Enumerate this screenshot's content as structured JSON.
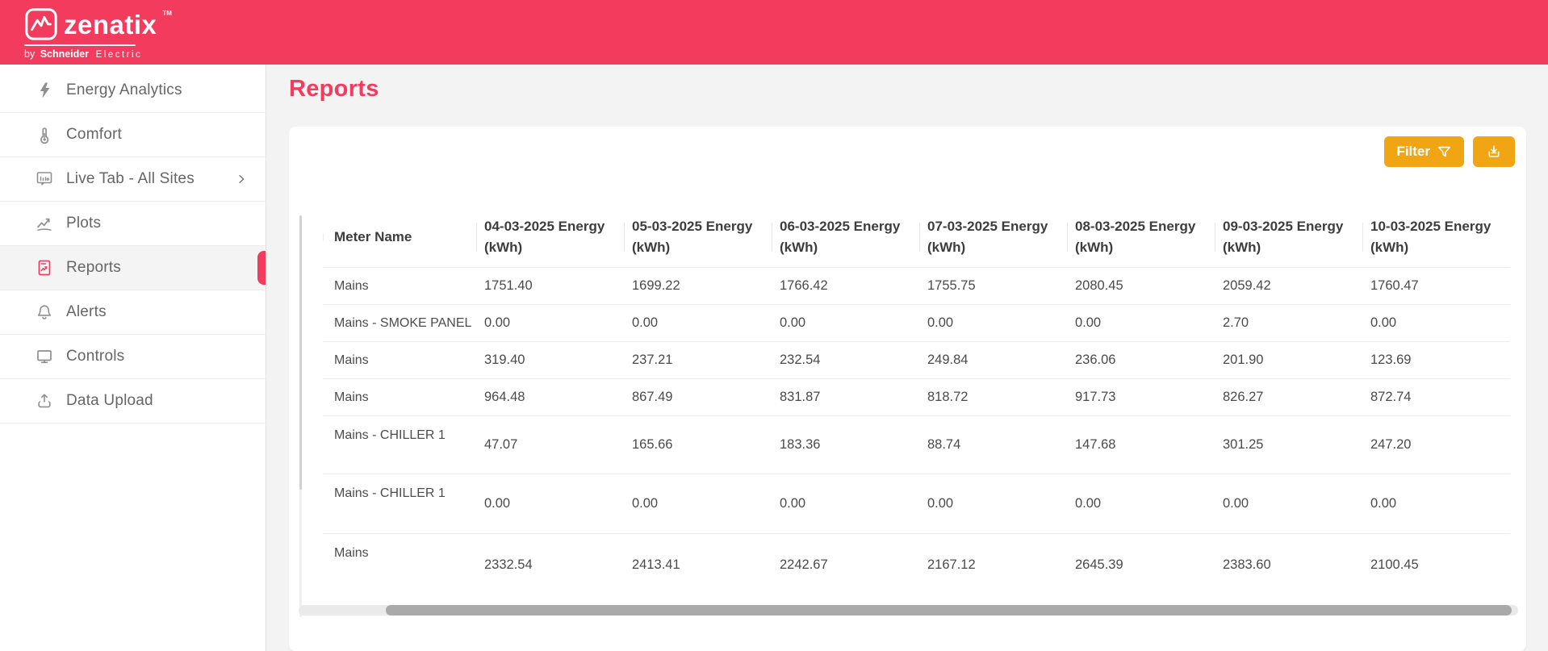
{
  "header": {
    "logo": {
      "text": "zenatix",
      "tm": "TM",
      "by": "by",
      "brand": "Schneider",
      "sub": "Electric"
    }
  },
  "sidebar": {
    "items": [
      {
        "label": "Energy Analytics",
        "icon": "bolt-icon",
        "active": false,
        "chevron": false
      },
      {
        "label": "Comfort",
        "icon": "thermometer-icon",
        "active": false,
        "chevron": false
      },
      {
        "label": "Live Tab - All Sites",
        "icon": "live-monitor-icon",
        "active": false,
        "chevron": true
      },
      {
        "label": "Plots",
        "icon": "line-chart-icon",
        "active": false,
        "chevron": false
      },
      {
        "label": "Reports",
        "icon": "report-document-icon",
        "active": true,
        "chevron": false
      },
      {
        "label": "Alerts",
        "icon": "bell-icon",
        "active": false,
        "chevron": false
      },
      {
        "label": "Controls",
        "icon": "monitor-icon",
        "active": false,
        "chevron": false
      },
      {
        "label": "Data Upload",
        "icon": "upload-icon",
        "active": false,
        "chevron": false
      }
    ]
  },
  "page": {
    "title": "Reports"
  },
  "toolbar": {
    "filter_label": "Filter",
    "filter_icon": "funnel-icon",
    "download_icon": "download-icon"
  },
  "table": {
    "columns": [
      "Meter Name",
      "04-03-2025 Energy (kWh)",
      "05-03-2025 Energy (kWh)",
      "06-03-2025 Energy (kWh)",
      "07-03-2025 Energy (kWh)",
      "08-03-2025 Energy (kWh)",
      "09-03-2025 Energy (kWh)",
      "10-03-2025 Energy (kWh)"
    ],
    "rows": [
      {
        "meter": "Mains",
        "values": [
          "1751.40",
          "1699.22",
          "1766.42",
          "1755.75",
          "2080.45",
          "2059.42",
          "1760.47"
        ]
      },
      {
        "meter": "Mains - SMOKE PANEL",
        "values": [
          "0.00",
          "0.00",
          "0.00",
          "0.00",
          "0.00",
          "2.70",
          "0.00"
        ]
      },
      {
        "meter": "Mains",
        "values": [
          "319.40",
          "237.21",
          "232.54",
          "249.84",
          "236.06",
          "201.90",
          "123.69"
        ]
      },
      {
        "meter": "Mains",
        "values": [
          "964.48",
          "867.49",
          "831.87",
          "818.72",
          "917.73",
          "826.27",
          "872.74"
        ]
      },
      {
        "meter": "Mains - CHILLER 1",
        "values": [
          "47.07",
          "165.66",
          "183.36",
          "88.74",
          "147.68",
          "301.25",
          "247.20"
        ]
      },
      {
        "meter": "Mains - CHILLER 1",
        "values": [
          "0.00",
          "0.00",
          "0.00",
          "0.00",
          "0.00",
          "0.00",
          "0.00"
        ]
      },
      {
        "meter": "Mains",
        "values": [
          "2332.54",
          "2413.41",
          "2242.67",
          "2167.12",
          "2645.39",
          "2383.60",
          "2100.45"
        ]
      }
    ]
  },
  "colors": {
    "primary": "#f23b5d",
    "accent": "#f1a512"
  }
}
